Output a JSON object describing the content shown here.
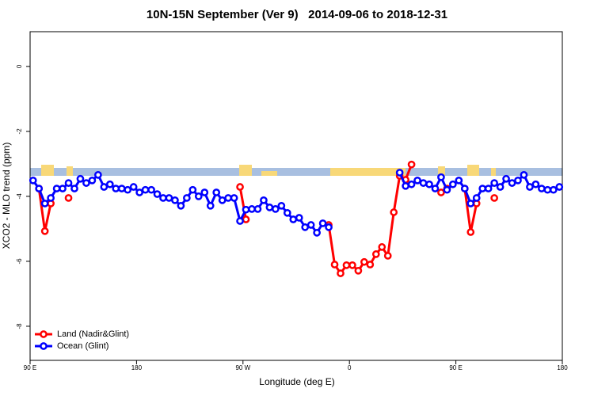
{
  "chart_data": {
    "type": "line",
    "title": "10N-15N September (Ver 9)   2014-09-06 to 2018-12-31",
    "x_label": "Longitude (deg E)",
    "y_label": "XCO2 - MLO trend (ppm)",
    "x": [
      92.5,
      97.5,
      102.5,
      107.5,
      112.5,
      117.5,
      122.5,
      127.5,
      132.5,
      137.5,
      142.5,
      147.5,
      152.5,
      157.5,
      162.5,
      167.5,
      172.5,
      177.5,
      182.5,
      187.5,
      192.5,
      197.5,
      202.5,
      207.5,
      212.5,
      217.5,
      222.5,
      227.5,
      232.5,
      237.5,
      242.5,
      247.5,
      252.5,
      257.5,
      262.5,
      267.5,
      272.5,
      277.5,
      282.5,
      287.5,
      292.5,
      297.5,
      302.5,
      307.5,
      312.5,
      317.5,
      322.5,
      327.5,
      332.5,
      337.5,
      342.5,
      347.5,
      352.5,
      357.5,
      362.5,
      367.5,
      372.5,
      377.5,
      382.5,
      387.5,
      392.5,
      397.5,
      402.5,
      407.5,
      412.5,
      417.5,
      422.5,
      427.5,
      432.5,
      437.5,
      442.5,
      447.5,
      452.5,
      457.5,
      462.5,
      467.5,
      472.5,
      477.5,
      482.5,
      487.5,
      492.5,
      497.5,
      502.5,
      507.5,
      512.5,
      517.5,
      522.5,
      527.5,
      532.5,
      537.5
    ],
    "series": [
      {
        "name": "Land (Nadir&Glint)",
        "color": "#ff0000",
        "values": [
          null,
          -3.76,
          -5.07,
          -4.22,
          null,
          null,
          -4.05,
          null,
          null,
          null,
          null,
          null,
          null,
          null,
          null,
          null,
          null,
          null,
          null,
          null,
          null,
          null,
          null,
          null,
          null,
          null,
          null,
          null,
          null,
          null,
          null,
          null,
          null,
          null,
          null,
          -3.71,
          -4.71,
          null,
          null,
          null,
          null,
          null,
          null,
          null,
          null,
          null,
          null,
          null,
          null,
          null,
          -4.88,
          -6.1,
          -6.37,
          -6.12,
          -6.12,
          -6.29,
          -6.02,
          -6.1,
          -5.78,
          -5.56,
          -5.83,
          -4.49,
          -3.37,
          -3.49,
          -3.02,
          null,
          null,
          null,
          null,
          -3.88,
          -3.76,
          null,
          null,
          -3.76,
          -5.1,
          -4.22,
          null,
          null,
          -4.05,
          null,
          null,
          null,
          null,
          null,
          null,
          null,
          null,
          null,
          null,
          null
        ]
      },
      {
        "name": "Ocean (Glint)",
        "color": "#0000ff",
        "values": [
          -3.51,
          -3.76,
          -4.22,
          -4.05,
          -3.76,
          -3.76,
          -3.59,
          -3.76,
          -3.46,
          -3.59,
          -3.51,
          -3.34,
          -3.71,
          -3.63,
          -3.76,
          -3.76,
          -3.8,
          -3.71,
          -3.88,
          -3.8,
          -3.8,
          -3.93,
          -4.05,
          -4.05,
          -4.12,
          -4.29,
          -4.05,
          -3.8,
          -4.0,
          -3.88,
          -4.29,
          -3.88,
          -4.12,
          -4.05,
          -4.05,
          -4.76,
          -4.41,
          -4.39,
          -4.39,
          -4.12,
          -4.34,
          -4.39,
          -4.29,
          -4.51,
          -4.71,
          -4.66,
          -4.95,
          -4.88,
          -5.12,
          -4.83,
          -4.95,
          null,
          null,
          null,
          null,
          null,
          null,
          null,
          null,
          null,
          null,
          null,
          -3.27,
          -3.68,
          -3.63,
          -3.51,
          -3.59,
          -3.63,
          -3.76,
          -3.41,
          -3.8,
          -3.63,
          -3.51,
          -3.76,
          -4.22,
          -4.05,
          -3.76,
          -3.76,
          -3.59,
          -3.71,
          -3.46,
          -3.59,
          -3.51,
          -3.34,
          -3.71,
          -3.63,
          -3.76,
          -3.8,
          -3.8,
          -3.71
        ]
      }
    ],
    "xlim": [
      90,
      540
    ],
    "xticks": [
      {
        "value": 90,
        "label": "90 E"
      },
      180,
      {
        "value": 270,
        "label": "90 W"
      },
      {
        "value": 360,
        "label": "0"
      },
      {
        "value": 450,
        "label": "90 E"
      },
      {
        "value": 540,
        "label": "180"
      }
    ],
    "ylim": [
      -9.05,
      1.07
    ],
    "yticks": [
      -8,
      -6,
      -4,
      -2,
      0
    ],
    "legend": "bottom-left"
  }
}
